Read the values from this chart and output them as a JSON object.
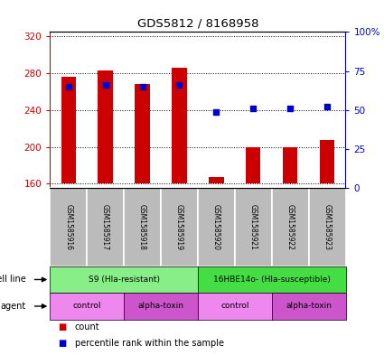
{
  "title": "GDS5812 / 8168958",
  "samples": [
    "GSM1585916",
    "GSM1585917",
    "GSM1585918",
    "GSM1585919",
    "GSM1585920",
    "GSM1585921",
    "GSM1585922",
    "GSM1585923"
  ],
  "counts": [
    276,
    283,
    268,
    286,
    167,
    200,
    200,
    207
  ],
  "percentile_ranks": [
    65,
    66,
    65,
    66,
    49,
    51,
    51,
    52
  ],
  "ylim_left": [
    155,
    325
  ],
  "ylim_right": [
    0,
    100
  ],
  "yticks_left": [
    160,
    200,
    240,
    280,
    320
  ],
  "yticks_right": [
    0,
    25,
    50,
    75,
    100
  ],
  "ytick_labels_right": [
    "0",
    "25",
    "50",
    "75",
    "100%"
  ],
  "bar_color": "#cc0000",
  "dot_color": "#0000cc",
  "bar_bottom": 160,
  "cell_lines": [
    {
      "label": "S9 (Hla-resistant)",
      "start": 0,
      "end": 4,
      "color": "#88ee88"
    },
    {
      "label": "16HBE14o- (Hla-susceptible)",
      "start": 4,
      "end": 8,
      "color": "#44dd44"
    }
  ],
  "agents": [
    {
      "label": "control",
      "start": 0,
      "end": 2,
      "color": "#ee88ee"
    },
    {
      "label": "alpha-toxin",
      "start": 2,
      "end": 4,
      "color": "#cc55cc"
    },
    {
      "label": "control",
      "start": 4,
      "end": 6,
      "color": "#ee88ee"
    },
    {
      "label": "alpha-toxin",
      "start": 6,
      "end": 8,
      "color": "#cc55cc"
    }
  ],
  "left_label_color": "#cc0000",
  "right_label_color": "#0000cc",
  "sample_box_color": "#bbbbbb",
  "legend_count_color": "#cc0000",
  "legend_pct_color": "#0000cc",
  "cell_line_colors": [
    "#aaffaa",
    "#44ee44"
  ],
  "agent_colors_light": "#ee88ee",
  "agent_colors_dark": "#cc55cc"
}
